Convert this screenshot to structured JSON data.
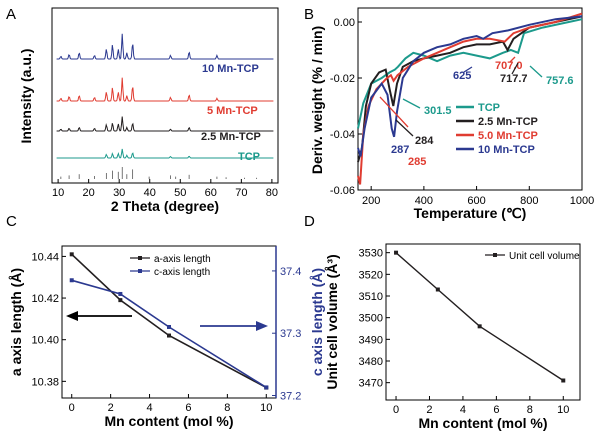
{
  "panels": [
    "A",
    "B",
    "C",
    "D"
  ],
  "chart_data": [
    {
      "panel": "A",
      "type": "line",
      "xlabel": "2 Theta (degree)",
      "ylabel": "Intensity (a.u.)",
      "xlim": [
        8,
        82
      ],
      "xticks": [
        10,
        20,
        30,
        40,
        50,
        60,
        70,
        80
      ],
      "series": [
        {
          "name": "10 Mn-TCP",
          "color": "#2b3990",
          "offset": 4.0,
          "peaks": [
            [
              10.9,
              0.15
            ],
            [
              13.6,
              0.25
            ],
            [
              16.9,
              0.35
            ],
            [
              21.9,
              0.2
            ],
            [
              25.8,
              0.55
            ],
            [
              27.8,
              0.8
            ],
            [
              29.7,
              0.55
            ],
            [
              31.0,
              1.4
            ],
            [
              32.5,
              0.35
            ],
            [
              34.4,
              0.9
            ],
            [
              46.8,
              0.2
            ],
            [
              52.9,
              0.4
            ],
            [
              62.0,
              0.2
            ]
          ]
        },
        {
          "name": "5 Mn-TCP",
          "color": "#e03c31",
          "offset": 2.6,
          "peaks": [
            [
              10.9,
              0.15
            ],
            [
              13.6,
              0.25
            ],
            [
              16.9,
              0.3
            ],
            [
              21.9,
              0.2
            ],
            [
              25.8,
              0.5
            ],
            [
              27.8,
              0.75
            ],
            [
              29.7,
              0.5
            ],
            [
              31.0,
              1.3
            ],
            [
              32.5,
              0.3
            ],
            [
              34.4,
              0.85
            ],
            [
              46.8,
              0.2
            ],
            [
              52.9,
              0.35
            ],
            [
              62.0,
              0.15
            ]
          ]
        },
        {
          "name": "2.5 Mn-TCP",
          "color": "#231f20",
          "offset": 1.6,
          "peaks": [
            [
              10.9,
              0.1
            ],
            [
              13.6,
              0.15
            ],
            [
              16.9,
              0.2
            ],
            [
              21.9,
              0.15
            ],
            [
              25.8,
              0.35
            ],
            [
              27.8,
              0.45
            ],
            [
              29.7,
              0.4
            ],
            [
              31.0,
              0.8
            ],
            [
              32.5,
              0.2
            ],
            [
              34.4,
              0.45
            ],
            [
              46.8,
              0.1
            ],
            [
              52.9,
              0.2
            ]
          ]
        },
        {
          "name": "TCP",
          "color": "#1c9a8c",
          "offset": 0.7,
          "peaks": [
            [
              25.8,
              0.2
            ],
            [
              27.8,
              0.25
            ],
            [
              29.7,
              0.25
            ],
            [
              31.0,
              0.5
            ],
            [
              32.5,
              0.15
            ],
            [
              34.4,
              0.3
            ],
            [
              46.8,
              0.08
            ],
            [
              52.9,
              0.1
            ]
          ]
        }
      ],
      "reference_sticks": [
        [
          10.9,
          0.2
        ],
        [
          13.6,
          0.3
        ],
        [
          16.9,
          0.4
        ],
        [
          21.9,
          0.25
        ],
        [
          25.8,
          0.5
        ],
        [
          27.8,
          0.7
        ],
        [
          29.7,
          0.6
        ],
        [
          31.0,
          1.0
        ],
        [
          32.5,
          0.4
        ],
        [
          34.4,
          0.8
        ],
        [
          39.8,
          0.2
        ],
        [
          46.8,
          0.3
        ],
        [
          48.5,
          0.2
        ],
        [
          52.9,
          0.35
        ],
        [
          62.0,
          0.2
        ],
        [
          65.0,
          0.15
        ],
        [
          71.0,
          0.1
        ],
        [
          75.0,
          0.1
        ]
      ]
    },
    {
      "panel": "B",
      "type": "line",
      "xlabel": "Temperature (℃)",
      "ylabel": "Deriv. weight (% / min)",
      "xlim": [
        150,
        1000
      ],
      "ylim": [
        -0.06,
        0.005
      ],
      "xticks": [
        200,
        400,
        600,
        800,
        1000
      ],
      "yticks": [
        0.0,
        -0.02,
        -0.04,
        -0.06
      ],
      "ytick_labels": [
        "0.00",
        "-0.02",
        "-0.04",
        "-0.06"
      ],
      "series": [
        {
          "name": "TCP",
          "color": "#1c9a8c",
          "points": [
            [
              150,
              -0.038
            ],
            [
              170,
              -0.029
            ],
            [
              200,
              -0.022
            ],
            [
              240,
              -0.02
            ],
            [
              270,
              -0.018
            ],
            [
              290,
              -0.017
            ],
            [
              301.5,
              -0.016
            ],
            [
              330,
              -0.013
            ],
            [
              360,
              -0.011
            ],
            [
              400,
              -0.012
            ],
            [
              450,
              -0.014
            ],
            [
              500,
              -0.012
            ],
            [
              550,
              -0.011
            ],
            [
              600,
              -0.012
            ],
            [
              650,
              -0.013
            ],
            [
              700,
              -0.011
            ],
            [
              730,
              -0.01
            ],
            [
              757.6,
              -0.011
            ],
            [
              780,
              -0.004
            ],
            [
              850,
              -0.002
            ],
            [
              950,
              0.0
            ],
            [
              1000,
              0.001
            ]
          ]
        },
        {
          "name": "2.5 Mn-TCP",
          "color": "#231f20",
          "points": [
            [
              150,
              -0.05
            ],
            [
              165,
              -0.045
            ],
            [
              180,
              -0.03
            ],
            [
              200,
              -0.022
            ],
            [
              230,
              -0.018
            ],
            [
              255,
              -0.017
            ],
            [
              270,
              -0.024
            ],
            [
              284,
              -0.03
            ],
            [
              298,
              -0.022
            ],
            [
              320,
              -0.016
            ],
            [
              360,
              -0.014
            ],
            [
              400,
              -0.013
            ],
            [
              450,
              -0.012
            ],
            [
              500,
              -0.011
            ],
            [
              550,
              -0.009
            ],
            [
              600,
              -0.008
            ],
            [
              650,
              -0.008
            ],
            [
              700,
              -0.007
            ],
            [
              717.7,
              -0.01
            ],
            [
              740,
              -0.006
            ],
            [
              800,
              -0.002
            ],
            [
              900,
              0.0
            ],
            [
              1000,
              0.002
            ]
          ]
        },
        {
          "name": "5.0 Mn-TCP",
          "color": "#e03c31",
          "points": [
            [
              150,
              -0.055
            ],
            [
              158,
              -0.058
            ],
            [
              170,
              -0.04
            ],
            [
              190,
              -0.03
            ],
            [
              220,
              -0.024
            ],
            [
              260,
              -0.02
            ],
            [
              275,
              -0.019
            ],
            [
              285,
              -0.021
            ],
            [
              300,
              -0.019
            ],
            [
              340,
              -0.016
            ],
            [
              400,
              -0.013
            ],
            [
              450,
              -0.011
            ],
            [
              500,
              -0.009
            ],
            [
              550,
              -0.007
            ],
            [
              600,
              -0.006
            ],
            [
              650,
              -0.006
            ],
            [
              707,
              -0.007
            ],
            [
              740,
              -0.004
            ],
            [
              800,
              -0.002
            ],
            [
              900,
              0.0
            ],
            [
              1000,
              0.003
            ]
          ]
        },
        {
          "name": "10 Mn-TCP",
          "color": "#2b3990",
          "points": [
            [
              150,
              -0.045
            ],
            [
              160,
              -0.048
            ],
            [
              175,
              -0.038
            ],
            [
              200,
              -0.027
            ],
            [
              240,
              -0.022
            ],
            [
              262,
              -0.026
            ],
            [
              278,
              -0.038
            ],
            [
              287,
              -0.041
            ],
            [
              298,
              -0.032
            ],
            [
              320,
              -0.02
            ],
            [
              360,
              -0.014
            ],
            [
              400,
              -0.011
            ],
            [
              450,
              -0.009
            ],
            [
              500,
              -0.008
            ],
            [
              550,
              -0.006
            ],
            [
              600,
              -0.005
            ],
            [
              625,
              -0.006
            ],
            [
              660,
              -0.004
            ],
            [
              720,
              -0.003
            ],
            [
              800,
              -0.001
            ],
            [
              900,
              0.001
            ],
            [
              1000,
              0.002
            ]
          ]
        }
      ],
      "annotations": [
        "301.5",
        "284",
        "285",
        "287",
        "625",
        "707.0",
        "717.7",
        "757.6"
      ]
    },
    {
      "panel": "C",
      "type": "line",
      "xlabel": "Mn content (mol %)",
      "ylabel": "a axis length (Å)",
      "y2label": "c axis length (Å)",
      "xlim": [
        -0.5,
        10.5
      ],
      "ylim": [
        10.372,
        10.445
      ],
      "y2lim": [
        37.196,
        37.44
      ],
      "xticks": [
        0,
        2,
        4,
        6,
        8,
        10
      ],
      "yticks": [
        10.38,
        10.4,
        10.42,
        10.44
      ],
      "ytick_labels": [
        "10.38",
        "10.40",
        "10.42",
        "10.44"
      ],
      "y2ticks": [
        37.2,
        37.3,
        37.4
      ],
      "y2tick_labels": [
        "37.2",
        "37.3",
        "37.4"
      ],
      "series": [
        {
          "name": "a-axis length",
          "color": "#231f20",
          "axis": "left",
          "x": [
            0,
            2.5,
            5,
            10
          ],
          "y": [
            10.441,
            10.419,
            10.402,
            10.377
          ]
        },
        {
          "name": "c-axis length",
          "color": "#2b3990",
          "axis": "right",
          "x": [
            0,
            2.5,
            5,
            10
          ],
          "y": [
            37.385,
            37.363,
            37.31,
            37.213
          ]
        }
      ]
    },
    {
      "panel": "D",
      "type": "line",
      "xlabel": "Mn content (mol %)",
      "ylabel": "Unit cell volume (Å³)",
      "xlim": [
        -0.6,
        11
      ],
      "ylim": [
        3462,
        3534
      ],
      "xticks": [
        0,
        2,
        4,
        6,
        8,
        10
      ],
      "yticks": [
        3470,
        3480,
        3490,
        3500,
        3510,
        3520,
        3530
      ],
      "series": [
        {
          "name": "Unit cell volume",
          "color": "#231f20",
          "x": [
            0,
            2.5,
            5,
            10
          ],
          "y": [
            3530,
            3513,
            3496,
            3471
          ]
        }
      ]
    }
  ]
}
